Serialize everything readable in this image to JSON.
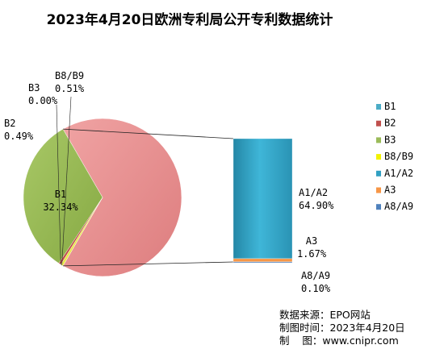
{
  "title": "2023年4月20日欧洲专利局公开专利数据统计",
  "chart_data": {
    "type": "pie",
    "subtype": "bar-of-pie",
    "title": "2023年4月20日欧洲专利局公开专利数据统计",
    "pie": [
      {
        "name": "B1",
        "label": "B1",
        "value_label": "32.34%",
        "value": 32.34,
        "color": "#9BBB59"
      },
      {
        "name": "B2",
        "label": "B2",
        "value_label": "0.49%",
        "value": 0.49,
        "color": "#C0504D"
      },
      {
        "name": "B3",
        "label": "B3",
        "value_label": "0.00%",
        "value": 0.0,
        "color": "#8064A2"
      },
      {
        "name": "B8/B9",
        "label": "B8/B9",
        "value_label": "0.51%",
        "value": 0.51,
        "color": "#E8E84A"
      }
    ],
    "bar": [
      {
        "name": "A1/A2",
        "label": "A1/A2",
        "value_label": "64.90%",
        "value": 64.9,
        "color": "#31A0C2"
      },
      {
        "name": "A3",
        "label": "A3",
        "value_label": "1.67%",
        "value": 1.67,
        "color": "#F79646"
      },
      {
        "name": "A8/A9",
        "label": "A8/A9",
        "value_label": "0.10%",
        "value": 0.1,
        "color": "#4F81BD"
      }
    ],
    "other_slice": {
      "value": 66.67,
      "color": "#E8898A"
    },
    "legend": {
      "placement": "right",
      "items": [
        {
          "name": "B1",
          "color": "#4BACC6"
        },
        {
          "name": "B2",
          "color": "#C0504D"
        },
        {
          "name": "B3",
          "color": "#9BBB59"
        },
        {
          "name": "B8/B9",
          "color": "#F2F200"
        },
        {
          "name": "A1/A2",
          "color": "#31A0C2"
        },
        {
          "name": "A3",
          "color": "#F79646"
        },
        {
          "name": "A8/A9",
          "color": "#4F81BD"
        }
      ]
    }
  },
  "source": {
    "line1": "数据来源：EPO网站",
    "line2": "制图时间：2023年4月20日",
    "line3": "制    图：www.cnipr.com"
  }
}
